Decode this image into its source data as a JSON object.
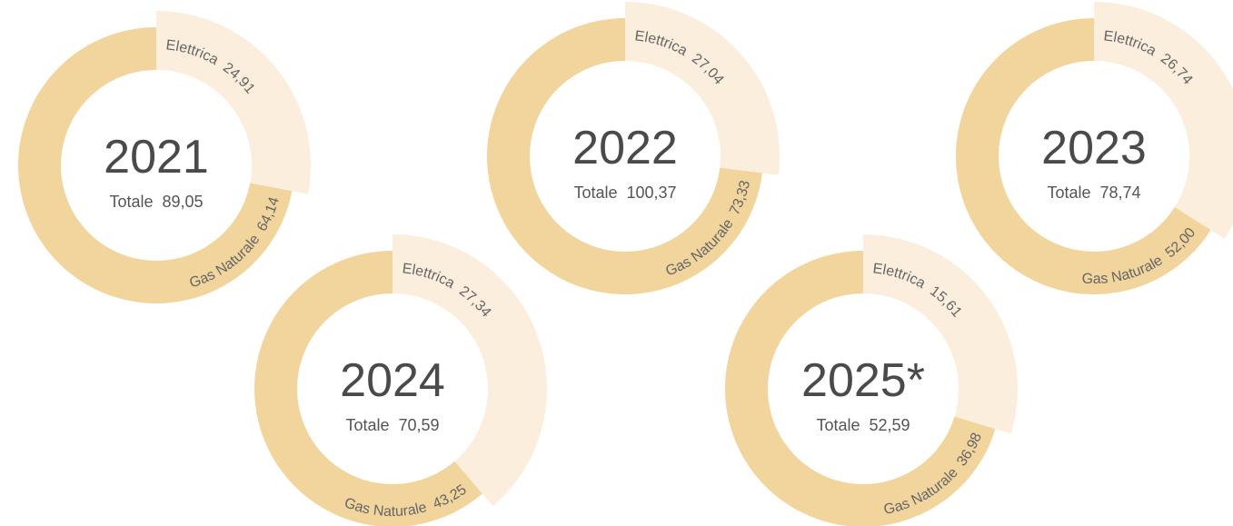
{
  "chart_data": [
    {
      "type": "pie",
      "title": "2021",
      "total_label": "Totale",
      "total": {
        "value": 89.05,
        "label": "89,05"
      },
      "categories": [
        "Elettrica",
        "Gas Naturale"
      ],
      "values": [
        24.91,
        64.14
      ],
      "value_labels": [
        "24,91",
        "64,14"
      ],
      "colors": [
        "#fbeedd",
        "#f2d49d"
      ]
    },
    {
      "type": "pie",
      "title": "2022",
      "total_label": "Totale",
      "total": {
        "value": 100.37,
        "label": "100,37"
      },
      "categories": [
        "Elettrica",
        "Gas Naturale"
      ],
      "values": [
        27.04,
        73.33
      ],
      "value_labels": [
        "27,04",
        "73,33"
      ],
      "colors": [
        "#fbeedd",
        "#f2d49d"
      ]
    },
    {
      "type": "pie",
      "title": "2023",
      "total_label": "Totale",
      "total": {
        "value": 78.74,
        "label": "78,74"
      },
      "categories": [
        "Elettrica",
        "Gas Naturale"
      ],
      "values": [
        26.74,
        52.0
      ],
      "value_labels": [
        "26,74",
        "52,00"
      ],
      "colors": [
        "#fbeedd",
        "#f2d49d"
      ]
    },
    {
      "type": "pie",
      "title": "2024",
      "total_label": "Totale",
      "total": {
        "value": 70.59,
        "label": "70,59"
      },
      "categories": [
        "Elettrica",
        "Gas Naturale"
      ],
      "values": [
        27.34,
        43.25
      ],
      "value_labels": [
        "27,34",
        "43,25"
      ],
      "colors": [
        "#fbeedd",
        "#f2d49d"
      ]
    },
    {
      "type": "pie",
      "title": "2025*",
      "total_label": "Totale",
      "total": {
        "value": 52.59,
        "label": "52,59"
      },
      "categories": [
        "Elettrica",
        "Gas Naturale"
      ],
      "values": [
        15.61,
        36.98
      ],
      "value_labels": [
        "15,61",
        "36,98"
      ],
      "colors": [
        "#fbeedd",
        "#f2d49d"
      ]
    }
  ]
}
